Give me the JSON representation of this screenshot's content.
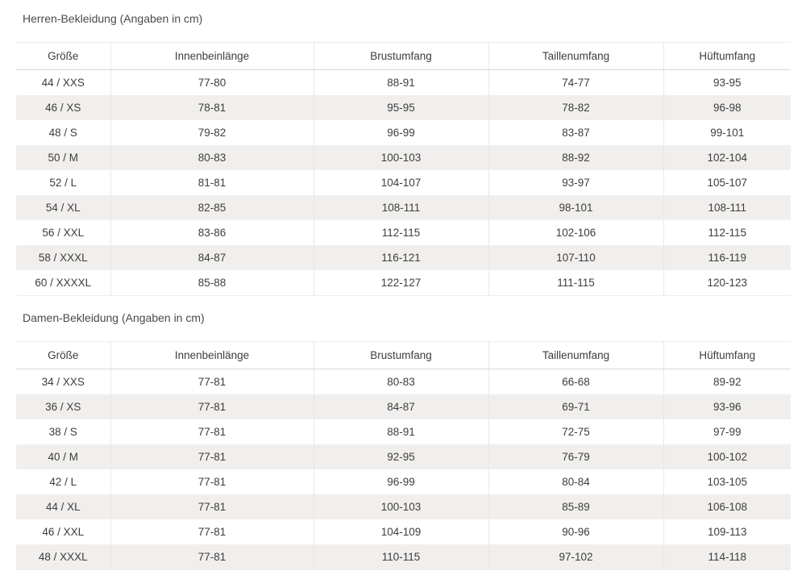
{
  "tables": [
    {
      "title": "Herren-Bekleidung (Angaben in cm)",
      "columns": [
        "Größe",
        "Innenbeinlänge",
        "Brustumfang",
        "Taillenumfang",
        "Hüftumfang"
      ],
      "rows": [
        [
          "44 / XXS",
          "77-80",
          "88-91",
          "74-77",
          "93-95"
        ],
        [
          "46 / XS",
          "78-81",
          "95-95",
          "78-82",
          "96-98"
        ],
        [
          "48 / S",
          "79-82",
          "96-99",
          "83-87",
          "99-101"
        ],
        [
          "50 / M",
          "80-83",
          "100-103",
          "88-92",
          "102-104"
        ],
        [
          "52 / L",
          "81-81",
          "104-107",
          "93-97",
          "105-107"
        ],
        [
          "54 / XL",
          "82-85",
          "108-111",
          "98-101",
          "108-111"
        ],
        [
          "56 / XXL",
          "83-86",
          "112-115",
          "102-106",
          "112-115"
        ],
        [
          "58 / XXXL",
          "84-87",
          "116-121",
          "107-110",
          "116-119"
        ],
        [
          "60 / XXXXL",
          "85-88",
          "122-127",
          "111-115",
          "120-123"
        ]
      ]
    },
    {
      "title": "Damen-Bekleidung (Angaben in cm)",
      "columns": [
        "Größe",
        "Innenbeinlänge",
        "Brustumfang",
        "Taillenumfang",
        "Hüftumfang"
      ],
      "rows": [
        [
          "34 / XXS",
          "77-81",
          "80-83",
          "66-68",
          "89-92"
        ],
        [
          "36 / XS",
          "77-81",
          "84-87",
          "69-71",
          "93-96"
        ],
        [
          "38 / S",
          "77-81",
          "88-91",
          "72-75",
          "97-99"
        ],
        [
          "40 / M",
          "77-81",
          "92-95",
          "76-79",
          "100-102"
        ],
        [
          "42 / L",
          "77-81",
          "96-99",
          "80-84",
          "103-105"
        ],
        [
          "44 / XL",
          "77-81",
          "100-103",
          "85-89",
          "106-108"
        ],
        [
          "46 / XXL",
          "77-81",
          "104-109",
          "90-96",
          "109-113"
        ],
        [
          "48 / XXXL",
          "77-81",
          "110-115",
          "97-102",
          "114-118"
        ]
      ]
    }
  ],
  "colors": {
    "row_stripe": "#f1efed",
    "header_border": "#d9d7d5",
    "column_border": "#eae8e6",
    "text": "#3d3d3d"
  }
}
